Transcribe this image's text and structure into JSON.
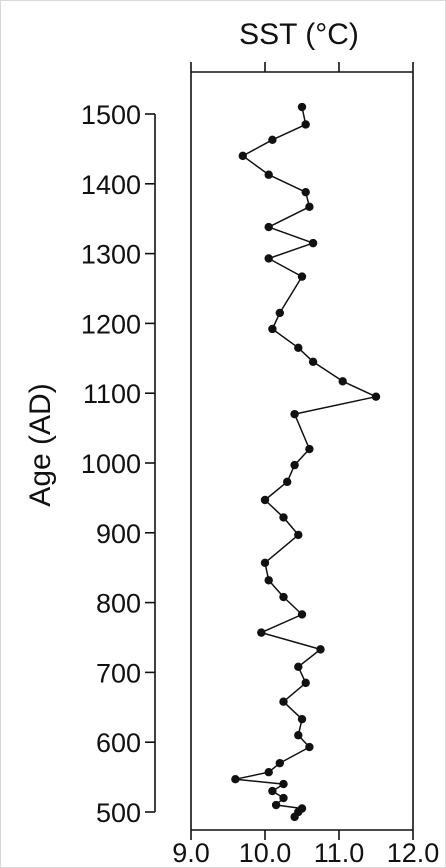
{
  "chart_data": {
    "type": "line",
    "title": "",
    "xlabel": "SST (°C)",
    "ylabel": "Age (AD)",
    "xlim": [
      9.0,
      12.0
    ],
    "ylim": [
      500,
      1500
    ],
    "x_ticks": [
      9.0,
      10.0,
      11.0,
      12.0
    ],
    "x_tick_labels": [
      "9.0",
      "10.0",
      "11.0",
      "12.0"
    ],
    "y_ticks": [
      500,
      600,
      700,
      800,
      900,
      1000,
      1100,
      1200,
      1300,
      1400,
      1500
    ],
    "y_tick_labels": [
      "500",
      "600",
      "700",
      "800",
      "900",
      "1000",
      "1100",
      "1200",
      "1300",
      "1400",
      "1500"
    ],
    "grid": false,
    "series": [
      {
        "points": [
          {
            "sst": 10.5,
            "age": 1510
          },
          {
            "sst": 10.55,
            "age": 1485
          },
          {
            "sst": 10.1,
            "age": 1463
          },
          {
            "sst": 9.7,
            "age": 1440
          },
          {
            "sst": 10.05,
            "age": 1413
          },
          {
            "sst": 10.55,
            "age": 1388
          },
          {
            "sst": 10.6,
            "age": 1367
          },
          {
            "sst": 10.05,
            "age": 1338
          },
          {
            "sst": 10.65,
            "age": 1315
          },
          {
            "sst": 10.05,
            "age": 1293
          },
          {
            "sst": 10.5,
            "age": 1267
          },
          {
            "sst": 10.2,
            "age": 1215
          },
          {
            "sst": 10.1,
            "age": 1192
          },
          {
            "sst": 10.45,
            "age": 1165
          },
          {
            "sst": 10.65,
            "age": 1145
          },
          {
            "sst": 11.05,
            "age": 1117
          },
          {
            "sst": 11.5,
            "age": 1095
          },
          {
            "sst": 10.4,
            "age": 1070
          },
          {
            "sst": 10.6,
            "age": 1020
          },
          {
            "sst": 10.4,
            "age": 997
          },
          {
            "sst": 10.3,
            "age": 973
          },
          {
            "sst": 10.0,
            "age": 947
          },
          {
            "sst": 10.25,
            "age": 922
          },
          {
            "sst": 10.45,
            "age": 897
          },
          {
            "sst": 10.0,
            "age": 857
          },
          {
            "sst": 10.05,
            "age": 832
          },
          {
            "sst": 10.25,
            "age": 808
          },
          {
            "sst": 10.5,
            "age": 783
          },
          {
            "sst": 9.95,
            "age": 757
          },
          {
            "sst": 10.75,
            "age": 733
          },
          {
            "sst": 10.45,
            "age": 708
          },
          {
            "sst": 10.55,
            "age": 685
          },
          {
            "sst": 10.25,
            "age": 658
          },
          {
            "sst": 10.5,
            "age": 633
          },
          {
            "sst": 10.45,
            "age": 610
          },
          {
            "sst": 10.6,
            "age": 593
          },
          {
            "sst": 10.2,
            "age": 570
          },
          {
            "sst": 10.05,
            "age": 557
          },
          {
            "sst": 9.6,
            "age": 547
          },
          {
            "sst": 10.25,
            "age": 540
          },
          {
            "sst": 10.1,
            "age": 530
          },
          {
            "sst": 10.25,
            "age": 520
          },
          {
            "sst": 10.15,
            "age": 510
          },
          {
            "sst": 10.5,
            "age": 505
          },
          {
            "sst": 10.45,
            "age": 500
          },
          {
            "sst": 10.4,
            "age": 493
          }
        ]
      }
    ]
  }
}
